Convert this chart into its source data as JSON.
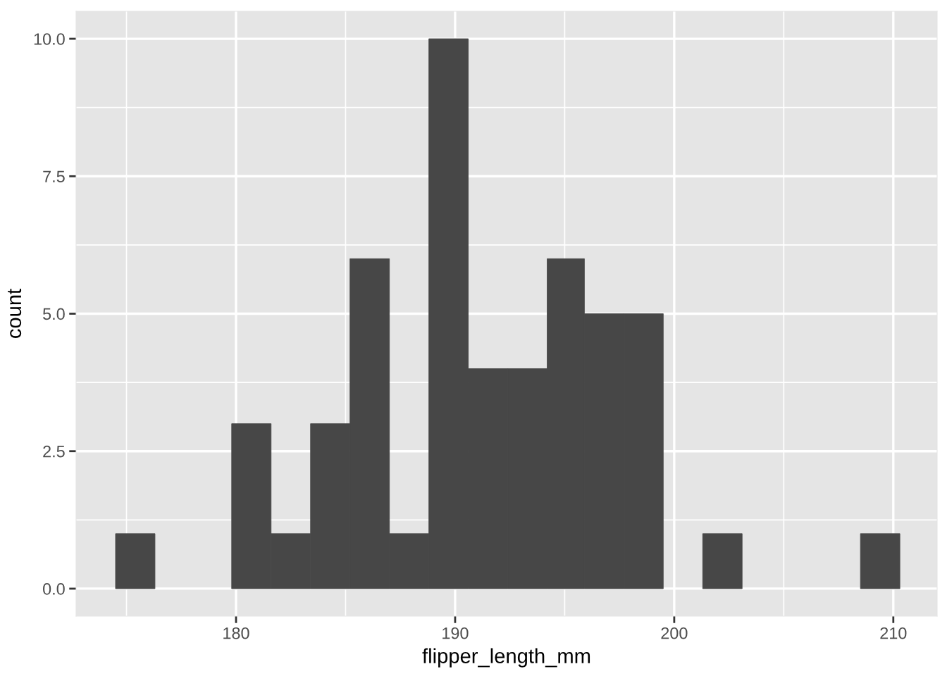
{
  "chart_data": {
    "type": "histogram",
    "xlabel": "flipper_length_mm",
    "ylabel": "count",
    "bins": [
      174.5,
      176.3,
      179.8,
      181.6,
      183.4,
      185.2,
      187.0,
      188.8,
      190.6,
      192.4,
      194.2,
      195.9,
      197.7,
      199.5,
      201.3,
      203.1,
      208.5,
      210.3
    ],
    "values": [
      1,
      0,
      3,
      1,
      3,
      6,
      1,
      10,
      4,
      4,
      6,
      5,
      5,
      0,
      1,
      0,
      1
    ],
    "color": "#474747",
    "xlim": [
      172.7,
      212.0
    ],
    "xticks": [
      180,
      190,
      200,
      210
    ],
    "ylim": [
      -0.5,
      10.5
    ],
    "yticks": [
      {
        "value": 0,
        "label": "0.0"
      },
      2.5,
      {
        "value": 5,
        "label": "5.0"
      },
      7.5,
      {
        "value": 10,
        "label": "10.0"
      }
    ],
    "grid": true
  }
}
